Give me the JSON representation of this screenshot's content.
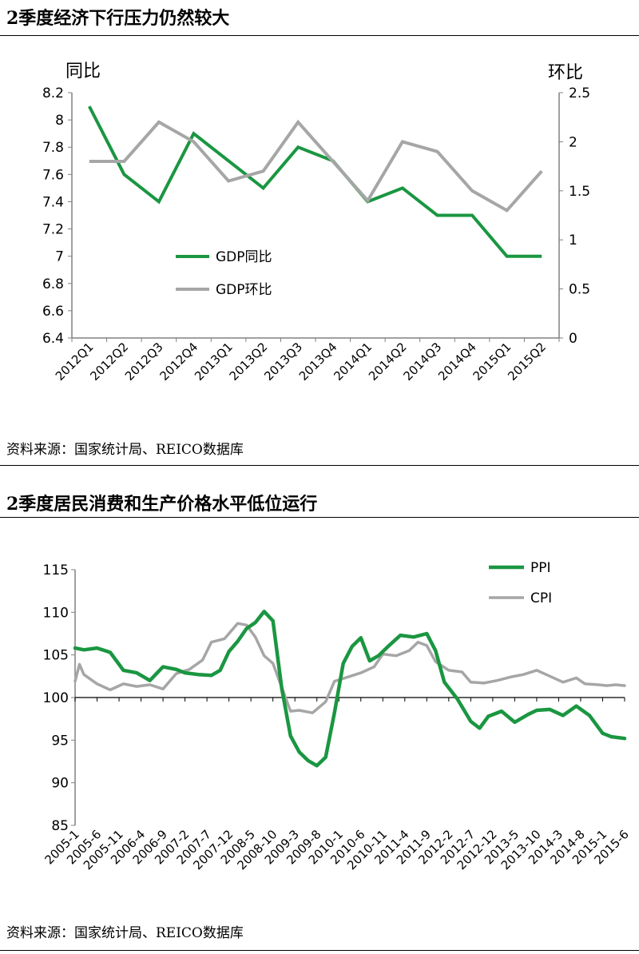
{
  "section1": {
    "title": "2季度经济下行压力仍然较大",
    "source": "资料来源：国家统计局、REICO数据库"
  },
  "section2": {
    "title": "2季度居民消费和生产价格水平低位运行",
    "source": "资料来源：国家统计局、REICO数据库"
  },
  "colors": {
    "green": "#1a9641",
    "gray": "#a6a6a6",
    "axis": "#808080"
  },
  "chart_data": [
    {
      "type": "line",
      "title": "",
      "categories": [
        "2012Q1",
        "2012Q2",
        "2012Q3",
        "2012Q4",
        "2013Q1",
        "2013Q2",
        "2013Q3",
        "2013Q4",
        "2014Q1",
        "2014Q2",
        "2014Q3",
        "2014Q4",
        "2015Q1",
        "2015Q2"
      ],
      "ylabel_left": "同比",
      "ylabel_right": "环比",
      "ylim_left": [
        6.4,
        8.2
      ],
      "yticks_left": [
        "8.2",
        "8",
        "7.8",
        "7.6",
        "7.4",
        "7.2",
        "7",
        "6.8",
        "6.6",
        "6.4"
      ],
      "ylim_right": [
        0,
        2.5
      ],
      "yticks_right": [
        "2.5",
        "2",
        "1.5",
        "1",
        "0.5",
        "0"
      ],
      "legend_position": "inside-left",
      "series": [
        {
          "name": "GDP同比",
          "axis": "left",
          "color": "#1a9641",
          "values": [
            8.1,
            7.6,
            7.4,
            7.9,
            7.7,
            7.5,
            7.8,
            7.7,
            7.4,
            7.5,
            7.3,
            7.3,
            7.0,
            7.0
          ]
        },
        {
          "name": "GDP环比",
          "axis": "right",
          "color": "#a6a6a6",
          "values": [
            1.8,
            1.8,
            2.2,
            2.0,
            1.6,
            1.7,
            2.2,
            1.8,
            1.4,
            2.0,
            1.9,
            1.5,
            1.3,
            1.7
          ]
        }
      ],
      "grid": false
    },
    {
      "type": "line",
      "title": "",
      "ylim": [
        85,
        115
      ],
      "yticks": [
        "115",
        "110",
        "105",
        "100",
        "95",
        "90",
        "85"
      ],
      "categories": [
        "2005-1",
        "2005-6",
        "2005-11",
        "2006-4",
        "2006-9",
        "2007-2",
        "2007-7",
        "2007-12",
        "2008-5",
        "2008-10",
        "2009-3",
        "2009-8",
        "2010-1",
        "2010-6",
        "2010-11",
        "2011-4",
        "2011-9",
        "2012-2",
        "2012-7",
        "2012-12",
        "2013-5",
        "2013-10",
        "2014-3",
        "2014-8",
        "2015-1",
        "2015-6"
      ],
      "x_start": "2005-1",
      "x_end": "2015-6",
      "legend_position": "top-right",
      "grid": false,
      "series": [
        {
          "name": "PPI",
          "color": "#1a9641",
          "points": [
            [
              "2005-1",
              105.8
            ],
            [
              "2005-3",
              105.6
            ],
            [
              "2005-6",
              105.8
            ],
            [
              "2005-9",
              105.3
            ],
            [
              "2005-12",
              103.2
            ],
            [
              "2006-3",
              102.9
            ],
            [
              "2006-6",
              102.0
            ],
            [
              "2006-9",
              103.6
            ],
            [
              "2006-12",
              103.3
            ],
            [
              "2007-2",
              102.9
            ],
            [
              "2007-5",
              102.7
            ],
            [
              "2007-8",
              102.6
            ],
            [
              "2007-10",
              103.2
            ],
            [
              "2007-12",
              105.4
            ],
            [
              "2008-2",
              106.6
            ],
            [
              "2008-4",
              108.1
            ],
            [
              "2008-6",
              108.8
            ],
            [
              "2008-8",
              110.1
            ],
            [
              "2008-10",
              109.0
            ],
            [
              "2008-12",
              101.1
            ],
            [
              "2009-2",
              95.5
            ],
            [
              "2009-4",
              93.6
            ],
            [
              "2009-6",
              92.6
            ],
            [
              "2009-8",
              92.0
            ],
            [
              "2009-10",
              93.0
            ],
            [
              "2009-12",
              98.2
            ],
            [
              "2010-2",
              104.0
            ],
            [
              "2010-4",
              106.0
            ],
            [
              "2010-6",
              107.0
            ],
            [
              "2010-8",
              104.3
            ],
            [
              "2010-10",
              104.9
            ],
            [
              "2010-12",
              105.9
            ],
            [
              "2011-3",
              107.3
            ],
            [
              "2011-6",
              107.1
            ],
            [
              "2011-9",
              107.5
            ],
            [
              "2011-11",
              105.5
            ],
            [
              "2012-1",
              101.8
            ],
            [
              "2012-4",
              99.8
            ],
            [
              "2012-7",
              97.2
            ],
            [
              "2012-9",
              96.4
            ],
            [
              "2012-11",
              97.8
            ],
            [
              "2013-2",
              98.4
            ],
            [
              "2013-5",
              97.1
            ],
            [
              "2013-8",
              98.0
            ],
            [
              "2013-10",
              98.5
            ],
            [
              "2014-1",
              98.6
            ],
            [
              "2014-4",
              97.9
            ],
            [
              "2014-7",
              99.0
            ],
            [
              "2014-10",
              97.9
            ],
            [
              "2015-1",
              95.8
            ],
            [
              "2015-3",
              95.4
            ],
            [
              "2015-6",
              95.2
            ]
          ]
        },
        {
          "name": "CPI",
          "color": "#a6a6a6",
          "points": [
            [
              "2005-1",
              101.9
            ],
            [
              "2005-2",
              103.9
            ],
            [
              "2005-3",
              102.7
            ],
            [
              "2005-6",
              101.6
            ],
            [
              "2005-9",
              100.9
            ],
            [
              "2005-12",
              101.6
            ],
            [
              "2006-3",
              101.3
            ],
            [
              "2006-6",
              101.5
            ],
            [
              "2006-9",
              101.0
            ],
            [
              "2006-12",
              102.8
            ],
            [
              "2007-3",
              103.3
            ],
            [
              "2007-6",
              104.4
            ],
            [
              "2007-8",
              106.5
            ],
            [
              "2007-11",
              106.9
            ],
            [
              "2008-2",
              108.7
            ],
            [
              "2008-4",
              108.5
            ],
            [
              "2008-6",
              107.1
            ],
            [
              "2008-8",
              104.9
            ],
            [
              "2008-10",
              104.0
            ],
            [
              "2008-12",
              101.2
            ],
            [
              "2009-2",
              98.4
            ],
            [
              "2009-4",
              98.5
            ],
            [
              "2009-7",
              98.2
            ],
            [
              "2009-10",
              99.5
            ],
            [
              "2009-12",
              101.9
            ],
            [
              "2010-3",
              102.4
            ],
            [
              "2010-6",
              102.9
            ],
            [
              "2010-9",
              103.6
            ],
            [
              "2010-11",
              105.1
            ],
            [
              "2011-2",
              104.9
            ],
            [
              "2011-5",
              105.5
            ],
            [
              "2011-7",
              106.5
            ],
            [
              "2011-9",
              106.1
            ],
            [
              "2011-11",
              104.2
            ],
            [
              "2012-2",
              103.2
            ],
            [
              "2012-5",
              103.0
            ],
            [
              "2012-7",
              101.8
            ],
            [
              "2012-10",
              101.7
            ],
            [
              "2013-1",
              102.0
            ],
            [
              "2013-4",
              102.4
            ],
            [
              "2013-7",
              102.7
            ],
            [
              "2013-10",
              103.2
            ],
            [
              "2014-1",
              102.5
            ],
            [
              "2014-4",
              101.8
            ],
            [
              "2014-7",
              102.3
            ],
            [
              "2014-9",
              101.6
            ],
            [
              "2014-12",
              101.5
            ],
            [
              "2015-2",
              101.4
            ],
            [
              "2015-4",
              101.5
            ],
            [
              "2015-6",
              101.4
            ]
          ]
        }
      ]
    }
  ]
}
